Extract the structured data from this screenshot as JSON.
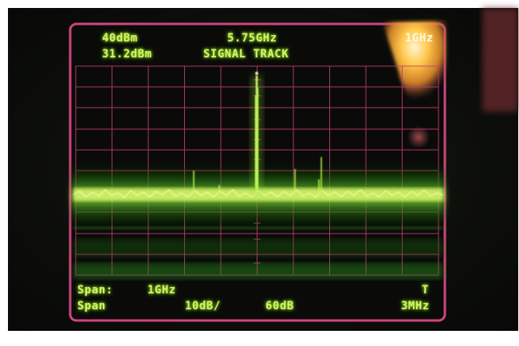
{
  "display": {
    "ref_level": "40dBm",
    "marker_level": "31.2dBm",
    "center_freq": "5.75GHz",
    "mode": "SIGNAL TRACK",
    "corner_label": "1GHz",
    "span_label": "Span:",
    "span_value": "1GHz",
    "span_soft_key": "Span",
    "scale": "10dB/",
    "attenuation": "60dB",
    "trace_flag": "T",
    "rbw": "3MHz"
  },
  "colors": {
    "bezel": "#0c0e0b",
    "graticule": "#c93c7a",
    "trace": "#c8f24a",
    "glow": "#2a8d1a",
    "text": "#d8f06a"
  }
}
